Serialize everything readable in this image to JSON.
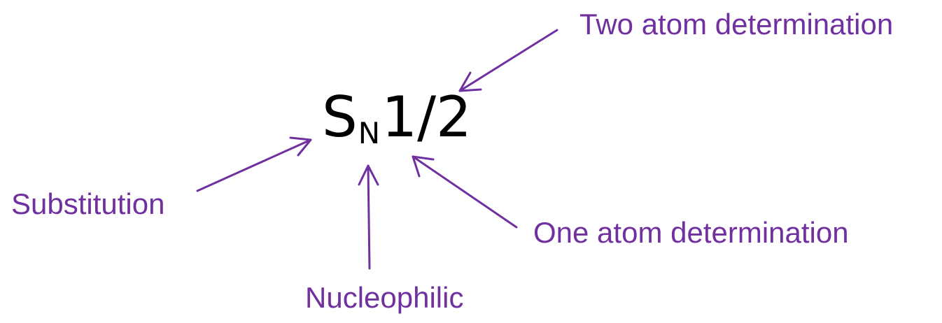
{
  "formula": {
    "main": "S",
    "subscript": "N",
    "suffix": "1/2"
  },
  "labels": {
    "two_atom": "Two atom determination",
    "substitution": "Substitution",
    "one_atom": "One atom determination",
    "nucleophilic": "Nucleophilic"
  },
  "colors": {
    "label": "#7030A0",
    "arrow": "#7030A0",
    "formula": "#000000"
  }
}
